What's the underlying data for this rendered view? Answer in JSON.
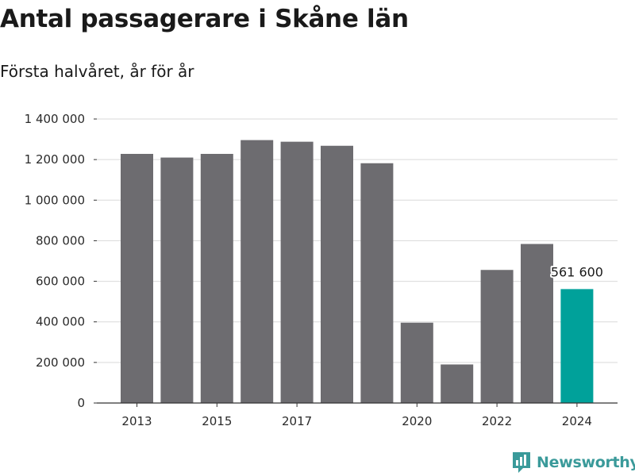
{
  "title": "Antal passagerare i Skåne län",
  "subtitle": "Första halvåret, år för år",
  "brand": {
    "name": "Newsworthy",
    "icon": "newsworthy-logo-icon",
    "color": "#3a9a9a"
  },
  "colors": {
    "bar": "#6d6c70",
    "highlight": "#00a19a",
    "grid": "#d9d9d9",
    "axis": "#333333"
  },
  "chart_data": {
    "type": "bar",
    "title": "Antal passagerare i Skåne län",
    "subtitle": "Första halvåret, år för år",
    "xlabel": "",
    "ylabel": "",
    "categories": [
      "2013",
      "2014",
      "2015",
      "2016",
      "2017",
      "2018",
      "2019",
      "2020",
      "2021",
      "2022",
      "2023",
      "2024"
    ],
    "values": [
      1228000,
      1210000,
      1228000,
      1296000,
      1288000,
      1268000,
      1182000,
      396000,
      190000,
      656000,
      784000,
      561600
    ],
    "ylim": [
      0,
      1400000
    ],
    "yticks": [
      0,
      200000,
      400000,
      600000,
      800000,
      1000000,
      1200000,
      1400000
    ],
    "ytick_labels": [
      "0",
      "200 000",
      "400 000",
      "600 000",
      "800 000",
      "1 000 000",
      "1 200 000",
      "1 400 000"
    ],
    "xtick_labels": [
      "2013",
      "2015",
      "2017",
      "2020",
      "2022",
      "2024"
    ],
    "highlight": {
      "category": "2024",
      "label": "561 600"
    },
    "grid": true,
    "legend": "none"
  }
}
